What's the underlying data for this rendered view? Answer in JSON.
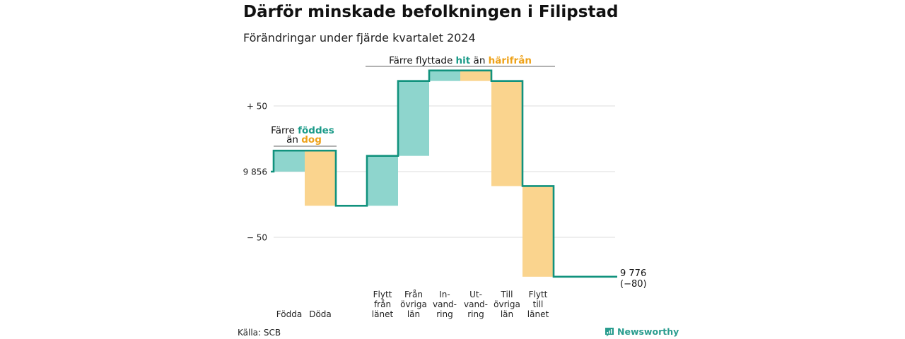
{
  "title": "Därför minskade befolkningen i Filipstad",
  "subtitle": "Förändringar under fjärde kvartalet 2024",
  "source": "Källa: SCB",
  "brand": "Newsworthy",
  "colors": {
    "line": "#11927d",
    "increase": "#8ed5cd",
    "decrease": "#fad48e",
    "increase_text": "#1a9a88",
    "decrease_text": "#eea21a",
    "grid": "#dddddd"
  },
  "chart_data": {
    "type": "waterfall",
    "start_value": 9856,
    "end_value": 9776,
    "end_label": "9 776",
    "end_change_label": "(−80)",
    "ylim": [
      -80,
      75
    ],
    "y_ticks": [
      {
        "value": 50,
        "label": "+ 50"
      },
      {
        "value": 0,
        "label": "9 856"
      },
      {
        "value": -50,
        "label": "− 50"
      }
    ],
    "steps": [
      {
        "label": [
          "Födda"
        ],
        "delta": 16,
        "kind": "increase"
      },
      {
        "label": [
          "Döda"
        ],
        "delta": -42,
        "kind": "decrease"
      },
      {
        "label": [],
        "delta": 0,
        "kind": "none"
      },
      {
        "label": [
          "Flytt",
          "från",
          "länet"
        ],
        "delta": 38,
        "kind": "increase"
      },
      {
        "label": [
          "Från",
          "övriga",
          "län"
        ],
        "delta": 57,
        "kind": "increase"
      },
      {
        "label": [
          "In-",
          "vand-",
          "ring"
        ],
        "delta": 8,
        "kind": "increase"
      },
      {
        "label": [
          "Ut-",
          "vand-",
          "ring"
        ],
        "delta": -8,
        "kind": "decrease"
      },
      {
        "label": [
          "Till",
          "övriga",
          "län"
        ],
        "delta": -80,
        "kind": "decrease"
      },
      {
        "label": [
          "Flytt",
          "till",
          "länet"
        ],
        "delta": -69,
        "kind": "decrease"
      }
    ],
    "annotations": {
      "births": {
        "line1": [
          "Färre ",
          "föddes"
        ],
        "line2": [
          "än ",
          "dog"
        ]
      },
      "migration": [
        "Färre flyttade ",
        "hit",
        " än ",
        "härifrån"
      ]
    }
  }
}
